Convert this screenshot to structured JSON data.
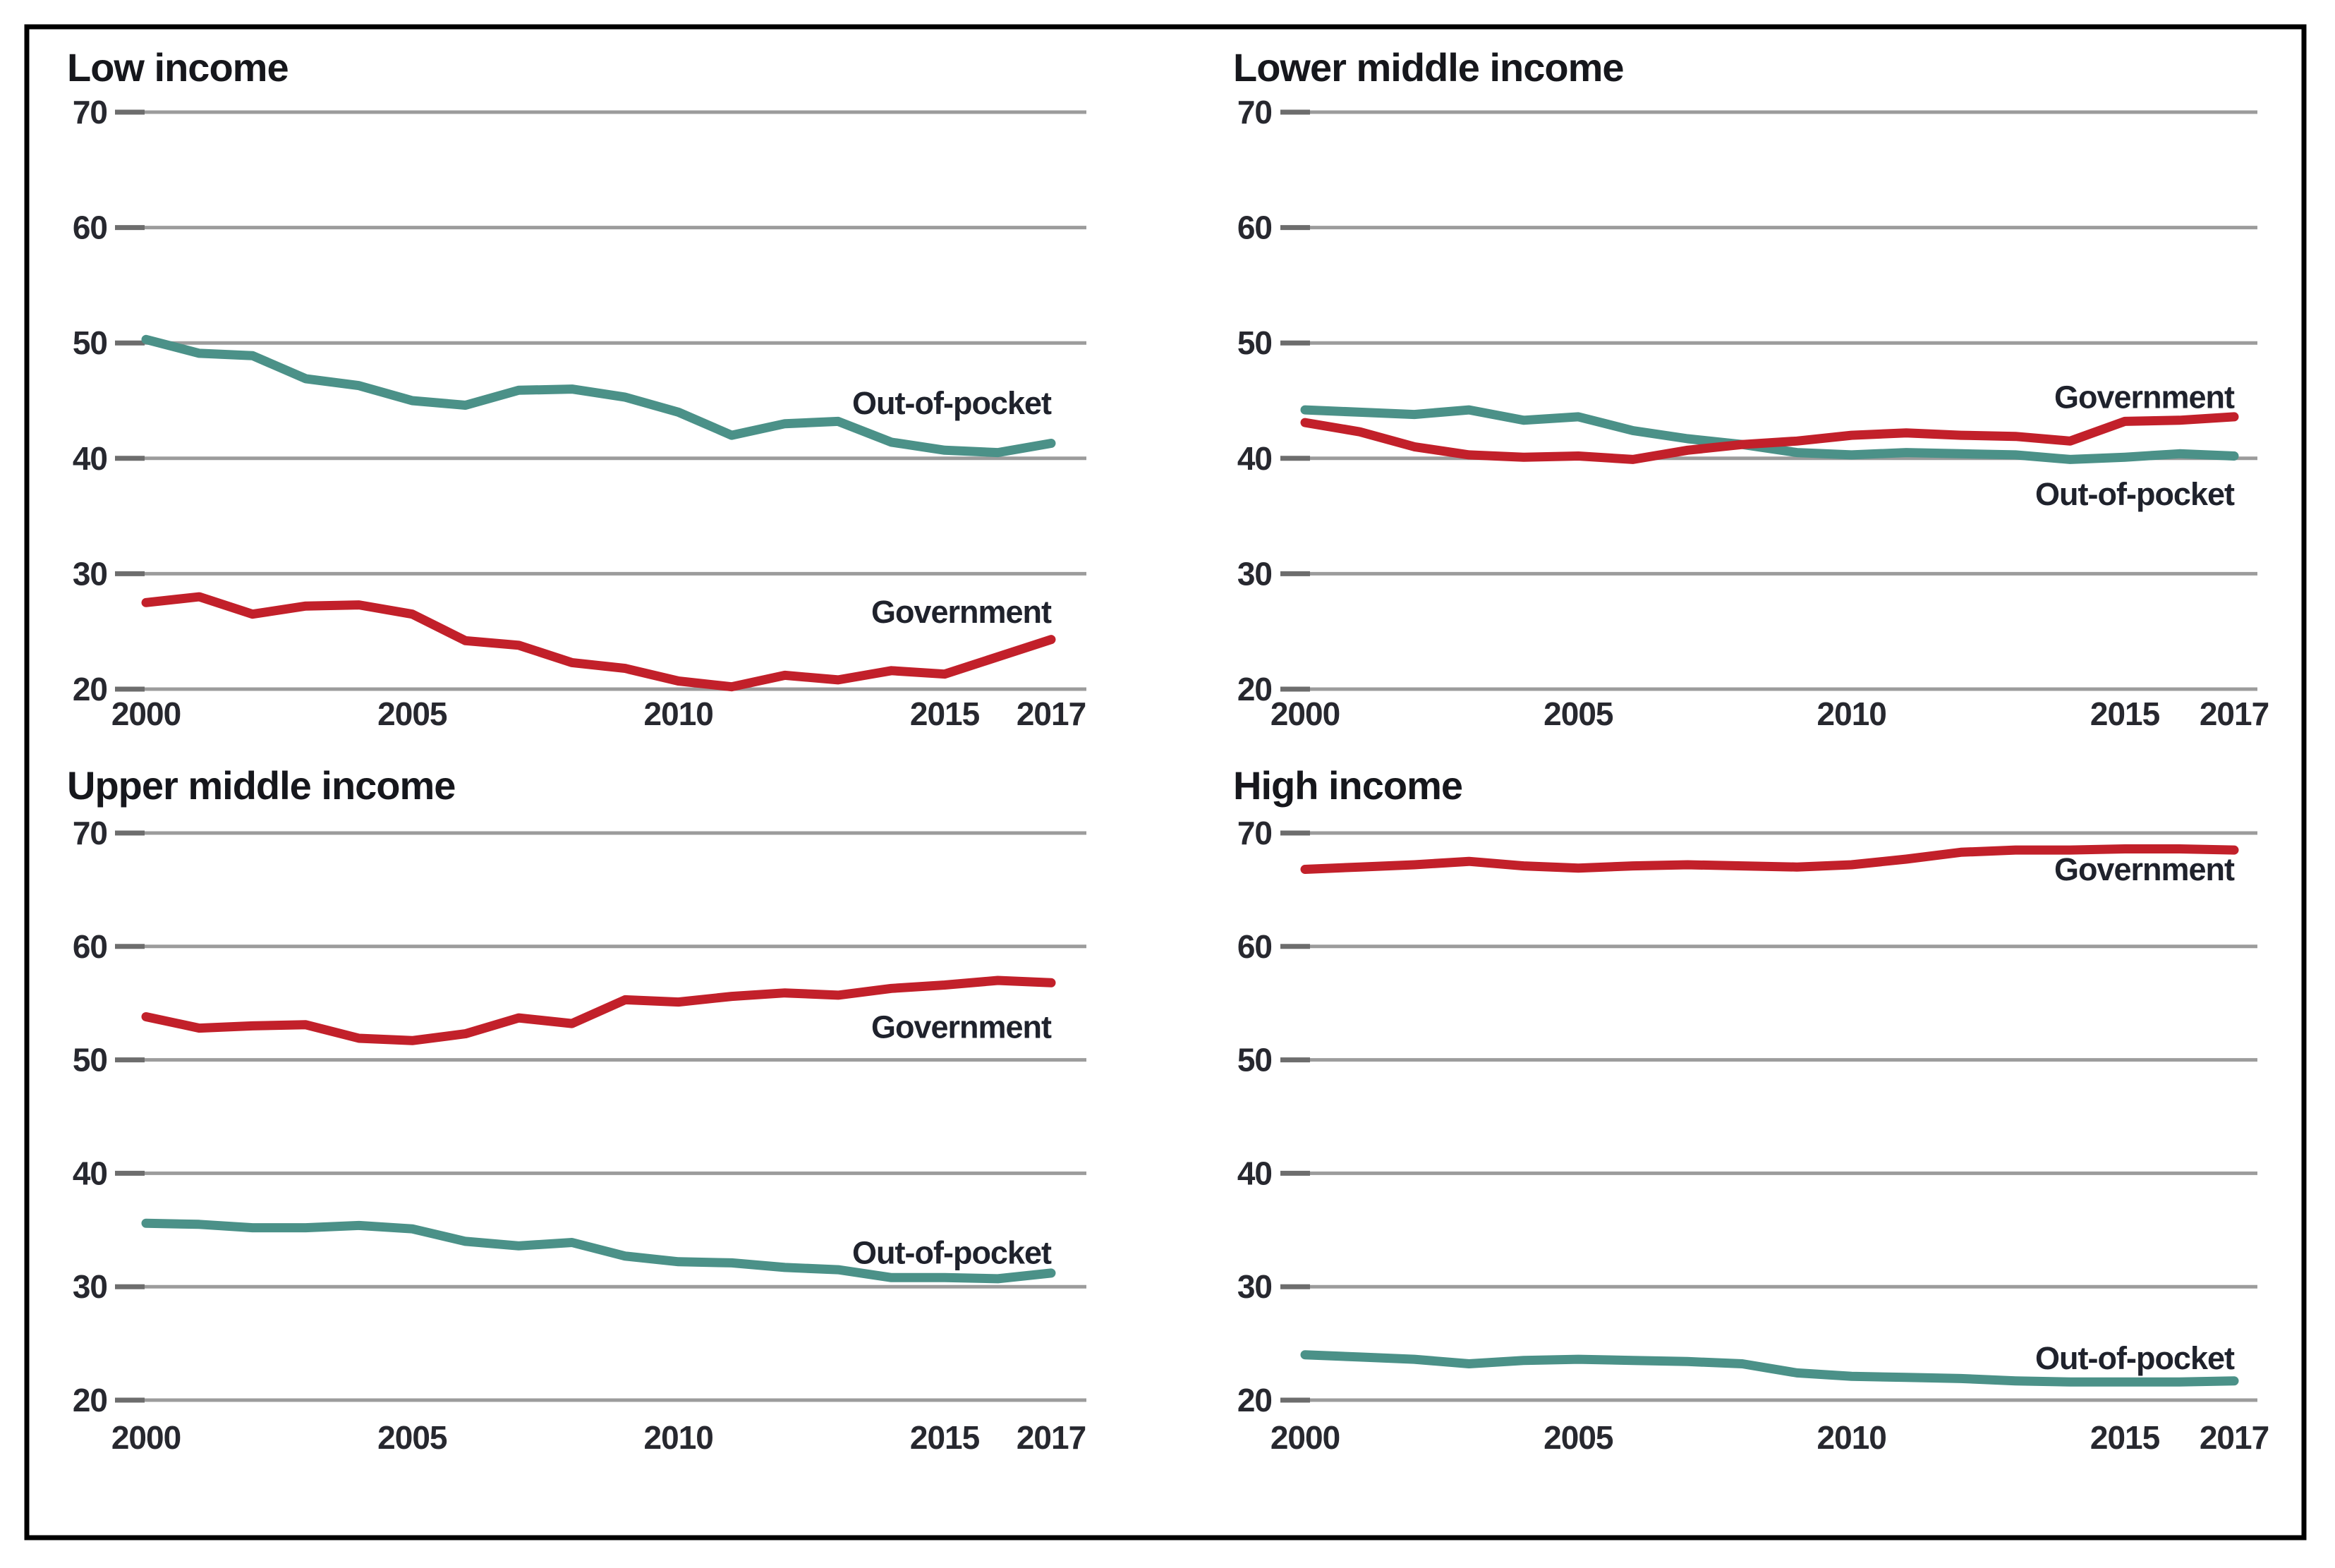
{
  "figure": {
    "background": "#ffffff",
    "border_color": "#000000"
  },
  "palette": {
    "government": "#c2202a",
    "out_of_pocket": "#4b9188",
    "gridline": "#9c9c9c",
    "tick": "#6d6d6d",
    "title_text": "#16171c",
    "axis_text": "#27282f",
    "series_label_text": "#1f222c"
  },
  "axes": {
    "ylim": [
      20,
      70
    ],
    "xlim": [
      2000,
      2017
    ],
    "y_ticks": [
      70,
      60,
      50,
      40,
      30,
      20
    ],
    "x_ticks": [
      2000,
      2005,
      2010,
      2015,
      2017
    ],
    "grid": "horizontal-only",
    "legend_position": "inline-end-labels"
  },
  "chart_data": [
    {
      "type": "line",
      "title": "Low income",
      "grid_position": "top-left",
      "x": [
        2000,
        2001,
        2002,
        2003,
        2004,
        2005,
        2006,
        2007,
        2008,
        2009,
        2010,
        2011,
        2012,
        2013,
        2014,
        2015,
        2016,
        2017
      ],
      "series": [
        {
          "name": "Out-of-pocket",
          "color_key": "out_of_pocket",
          "values": [
            50.3,
            49.1,
            48.9,
            46.9,
            46.3,
            45.0,
            44.6,
            45.9,
            46.0,
            45.3,
            44.0,
            42.0,
            43.0,
            43.2,
            41.4,
            40.7,
            40.5,
            41.3
          ],
          "label": {
            "text": "Out-of-pocket",
            "x": 2017,
            "y": 44.8
          }
        },
        {
          "name": "Government",
          "color_key": "government",
          "values": [
            27.5,
            28.0,
            26.5,
            27.2,
            27.3,
            26.5,
            24.2,
            23.8,
            22.3,
            21.8,
            20.7,
            20.2,
            21.2,
            20.8,
            21.6,
            21.3,
            22.8,
            24.3
          ],
          "label": {
            "text": "Government",
            "x": 2017,
            "y": 26.7
          }
        }
      ]
    },
    {
      "type": "line",
      "title": "Lower middle income",
      "grid_position": "top-right",
      "x": [
        2000,
        2001,
        2002,
        2003,
        2004,
        2005,
        2006,
        2007,
        2008,
        2009,
        2010,
        2011,
        2012,
        2013,
        2014,
        2015,
        2016,
        2017
      ],
      "series": [
        {
          "name": "Out-of-pocket",
          "color_key": "out_of_pocket",
          "values": [
            44.2,
            44.0,
            43.8,
            44.2,
            43.3,
            43.6,
            42.4,
            41.7,
            41.2,
            40.5,
            40.3,
            40.5,
            40.4,
            40.3,
            39.9,
            40.1,
            40.4,
            40.2
          ],
          "label": {
            "text": "Out-of-pocket",
            "x": 2017,
            "y": 36.9
          }
        },
        {
          "name": "Government",
          "color_key": "government",
          "values": [
            43.1,
            42.3,
            41.0,
            40.3,
            40.1,
            40.2,
            39.9,
            40.7,
            41.2,
            41.5,
            42.0,
            42.2,
            42.0,
            41.9,
            41.5,
            43.2,
            43.3,
            43.6
          ],
          "label": {
            "text": "Government",
            "x": 2017,
            "y": 45.3
          }
        }
      ]
    },
    {
      "type": "line",
      "title": "Upper middle income",
      "grid_position": "bottom-left",
      "x": [
        2000,
        2001,
        2002,
        2003,
        2004,
        2005,
        2006,
        2007,
        2008,
        2009,
        2010,
        2011,
        2012,
        2013,
        2014,
        2015,
        2016,
        2017
      ],
      "series": [
        {
          "name": "Out-of-pocket",
          "color_key": "out_of_pocket",
          "values": [
            35.6,
            35.5,
            35.2,
            35.2,
            35.4,
            35.1,
            34.0,
            33.6,
            33.9,
            32.7,
            32.2,
            32.1,
            31.7,
            31.5,
            30.8,
            30.8,
            30.7,
            31.2
          ],
          "label": {
            "text": "Out-of-pocket",
            "x": 2017,
            "y": 33.0
          }
        },
        {
          "name": "Government",
          "color_key": "government",
          "values": [
            53.8,
            52.8,
            53.0,
            53.1,
            51.9,
            51.7,
            52.3,
            53.7,
            53.2,
            55.3,
            55.1,
            55.6,
            55.9,
            55.7,
            56.3,
            56.6,
            57.0,
            56.8
          ],
          "label": {
            "text": "Government",
            "x": 2017,
            "y": 52.9
          }
        }
      ]
    },
    {
      "type": "line",
      "title": "High income",
      "grid_position": "bottom-right",
      "x": [
        2000,
        2001,
        2002,
        2003,
        2004,
        2005,
        2006,
        2007,
        2008,
        2009,
        2010,
        2011,
        2012,
        2013,
        2014,
        2015,
        2016,
        2017
      ],
      "series": [
        {
          "name": "Out-of-pocket",
          "color_key": "out_of_pocket",
          "values": [
            24.0,
            23.8,
            23.6,
            23.2,
            23.5,
            23.6,
            23.5,
            23.4,
            23.2,
            22.4,
            22.1,
            22.0,
            21.9,
            21.7,
            21.6,
            21.6,
            21.6,
            21.7
          ],
          "label": {
            "text": "Out-of-pocket",
            "x": 2017,
            "y": 23.7
          }
        },
        {
          "name": "Government",
          "color_key": "government",
          "values": [
            66.8,
            67.0,
            67.2,
            67.5,
            67.1,
            66.9,
            67.1,
            67.2,
            67.1,
            67.0,
            67.2,
            67.7,
            68.3,
            68.5,
            68.5,
            68.6,
            68.6,
            68.5
          ],
          "label": {
            "text": "Government",
            "x": 2017,
            "y": 66.8
          }
        }
      ]
    }
  ]
}
